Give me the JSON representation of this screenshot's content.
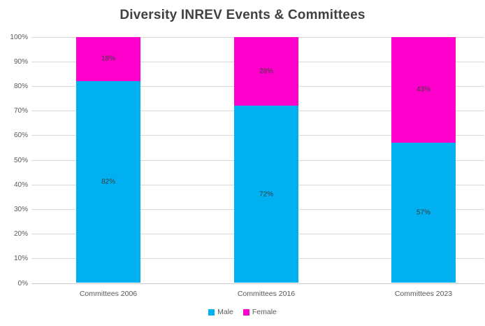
{
  "chart_data": {
    "type": "bar",
    "stacked": true,
    "title": "Diversity INREV Events & Committees",
    "categories": [
      "Committees 2006",
      "Committees 2016",
      "Committees 2023"
    ],
    "series": [
      {
        "name": "Male",
        "color": "#00B0F0",
        "values": [
          82,
          72,
          57
        ],
        "labels": [
          "82%",
          "72%",
          "57%"
        ]
      },
      {
        "name": "Female",
        "color": "#FF00CC",
        "values": [
          18,
          28,
          43
        ],
        "labels": [
          "18%",
          "28%",
          "43%"
        ]
      }
    ],
    "ylim": [
      0,
      100
    ],
    "yticks": [
      "0%",
      "10%",
      "20%",
      "30%",
      "40%",
      "50%",
      "60%",
      "70%",
      "80%",
      "90%",
      "100%"
    ],
    "xlabel": "",
    "ylabel": "",
    "grid": "horizontal",
    "gridline_color": "#D9D9D9",
    "legend_position": "bottom",
    "title_color": "#404040",
    "tick_label_color": "#595959",
    "data_label_color": "#3B3B3B",
    "background_color": "#FFFFFF"
  }
}
